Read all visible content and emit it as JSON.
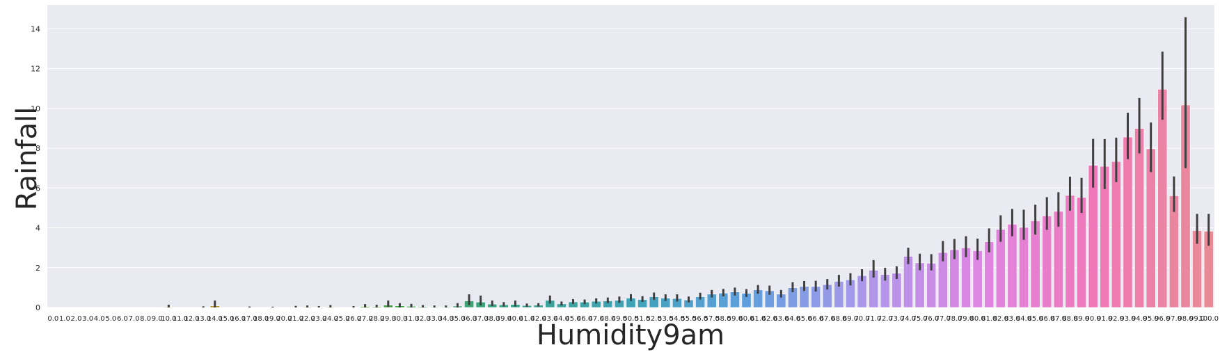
{
  "chart_data": {
    "type": "bar",
    "xlabel": "Humidity9am",
    "ylabel": "Rainfall",
    "ylim": [
      0,
      15.2
    ],
    "yticks": [
      0,
      2,
      4,
      6,
      8,
      10,
      12,
      14
    ],
    "grid": true,
    "legend": "none",
    "error_bars": true,
    "categories": [
      "0.0",
      "1.0",
      "2.0",
      "3.0",
      "4.0",
      "5.0",
      "6.0",
      "7.0",
      "8.0",
      "9.0",
      "10.0",
      "11.0",
      "12.0",
      "13.0",
      "14.0",
      "15.0",
      "16.0",
      "17.0",
      "18.0",
      "19.0",
      "20.0",
      "21.0",
      "22.0",
      "23.0",
      "24.0",
      "25.0",
      "26.0",
      "27.0",
      "28.0",
      "29.0",
      "30.0",
      "31.0",
      "32.0",
      "33.0",
      "34.0",
      "35.0",
      "36.0",
      "37.0",
      "38.0",
      "39.0",
      "40.0",
      "41.0",
      "42.0",
      "43.0",
      "44.0",
      "45.0",
      "46.0",
      "47.0",
      "48.0",
      "49.0",
      "50.0",
      "51.0",
      "52.0",
      "53.0",
      "54.0",
      "55.0",
      "56.0",
      "57.0",
      "58.0",
      "59.0",
      "60.0",
      "61.0",
      "62.0",
      "63.0",
      "64.0",
      "65.0",
      "66.0",
      "67.0",
      "68.0",
      "69.0",
      "70.0",
      "71.0",
      "72.0",
      "73.0",
      "74.0",
      "75.0",
      "76.0",
      "77.0",
      "78.0",
      "79.0",
      "80.0",
      "81.0",
      "82.0",
      "83.0",
      "84.0",
      "85.0",
      "86.0",
      "87.0",
      "88.0",
      "89.0",
      "90.0",
      "91.0",
      "92.0",
      "93.0",
      "94.0",
      "95.0",
      "96.0",
      "97.0",
      "98.0",
      "99.0",
      "100.0"
    ],
    "values": [
      0,
      0,
      0,
      0,
      0,
      0,
      0,
      0,
      0,
      0,
      0.03,
      0,
      0,
      0.01,
      0.08,
      0,
      0,
      0.01,
      0,
      0.01,
      0,
      0.02,
      0.03,
      0.02,
      0.03,
      0,
      0.02,
      0.05,
      0.04,
      0.12,
      0.08,
      0.06,
      0.04,
      0.03,
      0.03,
      0.07,
      0.33,
      0.27,
      0.17,
      0.13,
      0.15,
      0.1,
      0.12,
      0.36,
      0.18,
      0.28,
      0.27,
      0.31,
      0.33,
      0.36,
      0.47,
      0.4,
      0.54,
      0.47,
      0.45,
      0.38,
      0.54,
      0.67,
      0.72,
      0.78,
      0.71,
      0.89,
      0.84,
      0.67,
      0.99,
      1.06,
      1.05,
      1.15,
      1.31,
      1.39,
      1.6,
      1.87,
      1.65,
      1.72,
      2.57,
      2.24,
      2.22,
      2.76,
      2.9,
      3.0,
      2.85,
      3.3,
      3.92,
      4.18,
      4.02,
      4.35,
      4.6,
      4.83,
      5.63,
      5.53,
      7.14,
      7.09,
      7.33,
      8.56,
      8.99,
      7.97,
      10.96,
      5.61,
      10.17,
      3.86,
      3.83
    ],
    "err_low": [
      0,
      0,
      0,
      0,
      0,
      0,
      0,
      0,
      0,
      0,
      0,
      0,
      0,
      0,
      0,
      0,
      0,
      0,
      0,
      0,
      0,
      0,
      0,
      0,
      0,
      0,
      0,
      0,
      0,
      0.03,
      0,
      0,
      0,
      0,
      0,
      0,
      0.12,
      0.1,
      0.07,
      0.05,
      0.05,
      0.03,
      0.05,
      0.2,
      0.1,
      0.18,
      0.17,
      0.2,
      0.22,
      0.23,
      0.33,
      0.28,
      0.38,
      0.33,
      0.3,
      0.25,
      0.4,
      0.5,
      0.56,
      0.6,
      0.53,
      0.69,
      0.64,
      0.5,
      0.77,
      0.83,
      0.8,
      0.9,
      1.05,
      1.11,
      1.32,
      1.5,
      1.35,
      1.43,
      2.18,
      1.87,
      1.86,
      2.32,
      2.43,
      2.53,
      2.39,
      2.77,
      3.3,
      3.58,
      3.4,
      3.66,
      3.9,
      4.06,
      4.86,
      4.75,
      6.02,
      5.95,
      6.3,
      7.45,
      7.74,
      6.8,
      9.43,
      4.8,
      7.0,
      3.2,
      3.1
    ],
    "err_high": [
      0,
      0,
      0,
      0,
      0,
      0,
      0,
      0,
      0,
      0,
      0.14,
      0,
      0,
      0.06,
      0.35,
      0,
      0,
      0.05,
      0,
      0.04,
      0,
      0.08,
      0.1,
      0.07,
      0.12,
      0,
      0.07,
      0.17,
      0.14,
      0.35,
      0.22,
      0.18,
      0.12,
      0.1,
      0.1,
      0.22,
      0.66,
      0.6,
      0.35,
      0.27,
      0.35,
      0.2,
      0.22,
      0.6,
      0.3,
      0.42,
      0.4,
      0.46,
      0.5,
      0.55,
      0.67,
      0.57,
      0.75,
      0.66,
      0.66,
      0.55,
      0.74,
      0.88,
      0.93,
      1.0,
      0.92,
      1.13,
      1.1,
      0.88,
      1.27,
      1.33,
      1.34,
      1.43,
      1.64,
      1.72,
      1.92,
      2.38,
      1.99,
      2.07,
      3.0,
      2.7,
      2.68,
      3.34,
      3.44,
      3.58,
      3.46,
      3.97,
      4.63,
      4.95,
      4.91,
      5.16,
      5.54,
      5.79,
      6.57,
      6.51,
      8.47,
      8.46,
      8.53,
      9.78,
      10.52,
      9.29,
      12.85,
      6.58,
      14.58,
      4.7,
      4.7
    ],
    "palette_anchors": [
      "#e8828c",
      "#c98a33",
      "#8e9b2b",
      "#3fa249",
      "#3ba38e",
      "#3fa3b8",
      "#5f9fdd",
      "#ab97ea",
      "#dd86e3",
      "#f078b8",
      "#e88a96"
    ]
  }
}
